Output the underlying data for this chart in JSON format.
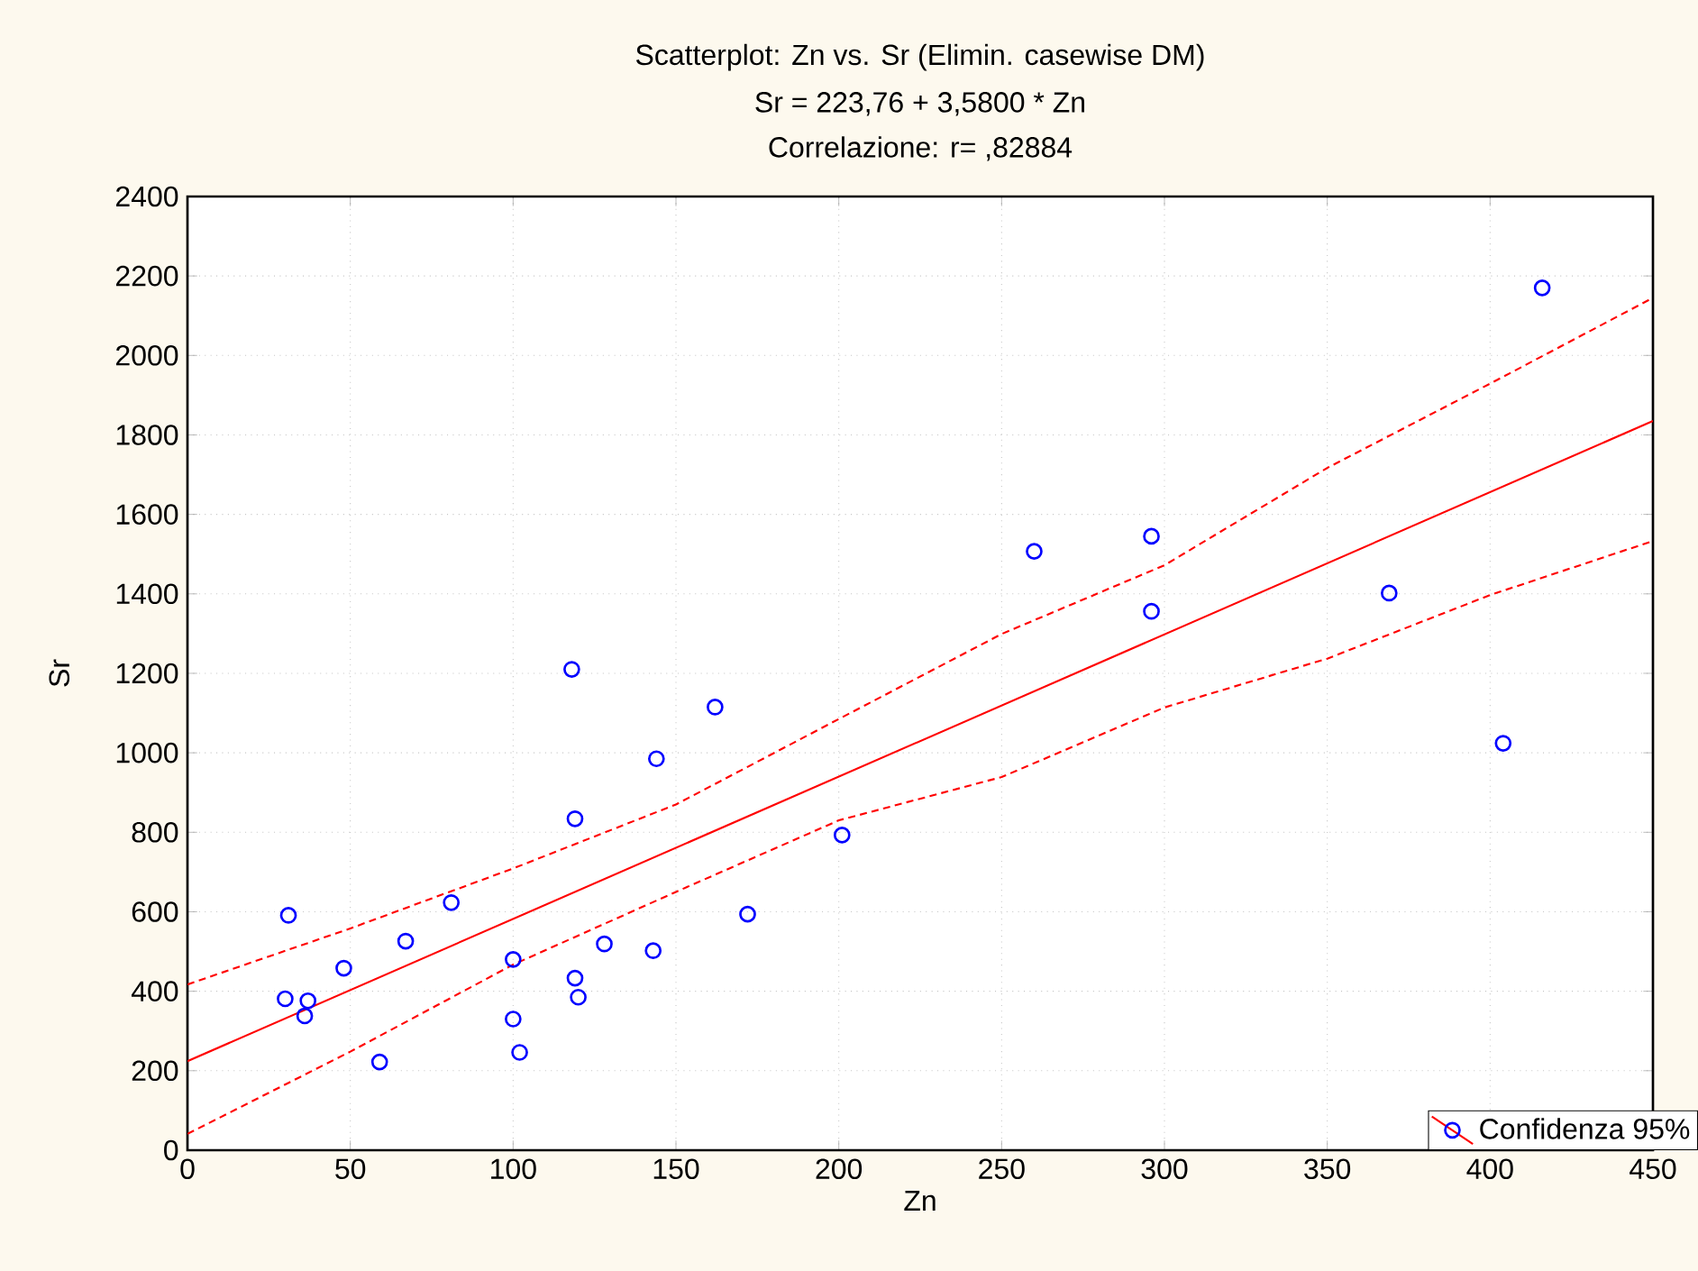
{
  "chart_data": {
    "type": "scatter",
    "title": "Scatterplot: Zn vs. Sr (Elimin. casewise DM)",
    "subtitle": "Sr = 223,76 + 3,5800 * Zn",
    "annotations": [
      "Correlazione: r= ,82884"
    ],
    "xlabel": "Zn",
    "ylabel": "Sr",
    "xlim": [
      0,
      450
    ],
    "xticks": [
      0,
      50,
      100,
      150,
      200,
      250,
      300,
      350,
      400,
      450
    ],
    "ylim": [
      0,
      2400
    ],
    "yticks": [
      0,
      200,
      400,
      600,
      800,
      1000,
      1200,
      1400,
      1600,
      1800,
      2000,
      2200,
      2400
    ],
    "grid": true,
    "legend": "bottom right",
    "series": [
      {
        "name": "Confidenza 95%",
        "marker": "circle",
        "color": "#0000ff",
        "x": [
          118,
          162,
          144,
          119,
          201,
          31,
          81,
          67,
          48,
          172,
          128,
          143,
          100,
          119,
          120,
          30,
          37,
          36,
          100,
          102,
          59,
          260,
          296,
          296,
          369,
          404,
          416
        ],
        "values": [
          1210,
          1115,
          985,
          834,
          793,
          591,
          623,
          526,
          458,
          594,
          519,
          502,
          480,
          433,
          385,
          381,
          376,
          338,
          330,
          246,
          222,
          1507,
          1545,
          1356,
          1402,
          1024,
          2170
        ]
      },
      {
        "type": "line",
        "line_style": "solid",
        "color": "#ff0000",
        "x": [
          0,
          450
        ],
        "values": [
          224,
          1835
        ]
      },
      {
        "type": "line",
        "line_style": "dashed",
        "color": "#ff0000",
        "x": [
          0,
          50,
          100,
          150,
          200,
          250,
          300,
          350,
          400,
          450
        ],
        "values": [
          417,
          558,
          709,
          870,
          1085,
          1299,
          1472,
          1717,
          1929,
          2145
        ]
      },
      {
        "type": "line",
        "line_style": "dashed",
        "color": "#ff0000",
        "x": [
          0,
          50,
          100,
          150,
          200,
          250,
          300,
          350,
          400,
          450
        ],
        "values": [
          41,
          248,
          467,
          650,
          830,
          939,
          1114,
          1237,
          1397,
          1533
        ]
      }
    ]
  }
}
